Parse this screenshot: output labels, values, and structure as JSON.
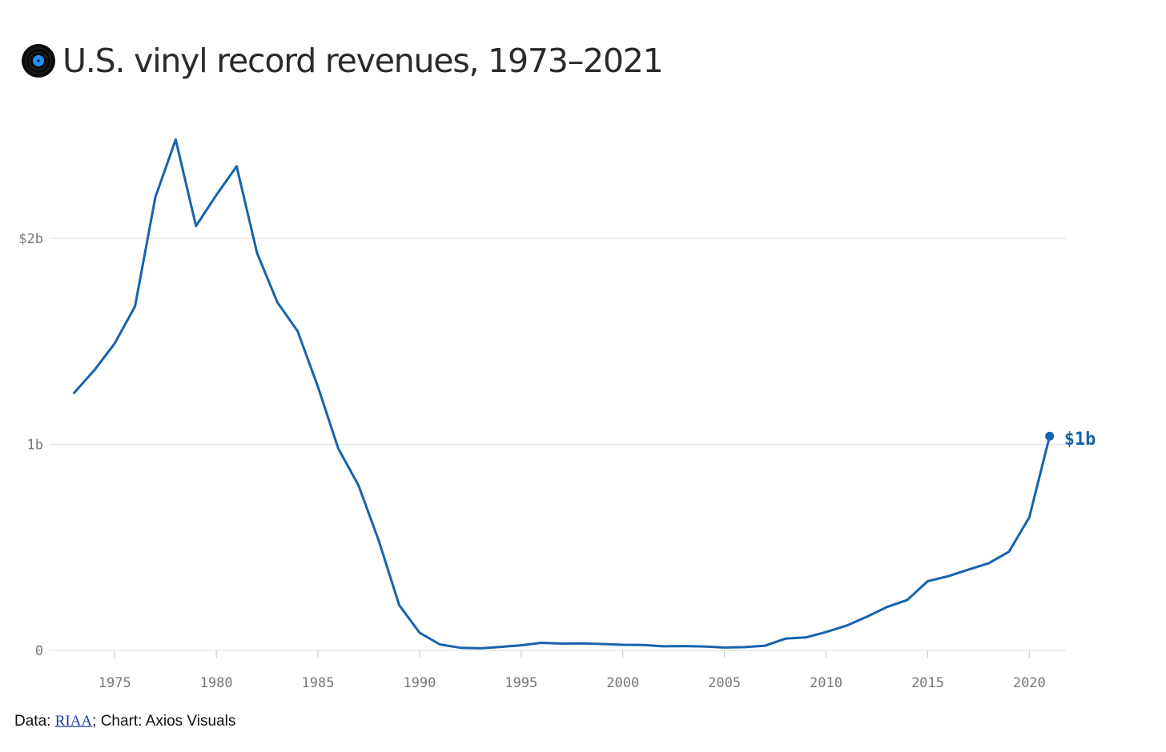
{
  "title": "U.S. vinyl record revenues, 1973–2021",
  "icon": "vinyl-record-icon",
  "colors": {
    "line": "#1763ad",
    "grid": "#e3e3e3",
    "tick": "#777777",
    "icon_center": "#1e90ff"
  },
  "footer": {
    "prefix": "Data: ",
    "source_link": "RIAA",
    "suffix": "; Chart: Axios Visuals"
  },
  "chart_data": {
    "type": "line",
    "title": "U.S. vinyl record revenues, 1973–2021",
    "xlabel": "",
    "ylabel": "",
    "x": [
      1973,
      1974,
      1975,
      1976,
      1977,
      1978,
      1979,
      1980,
      1981,
      1982,
      1983,
      1984,
      1985,
      1986,
      1987,
      1988,
      1989,
      1990,
      1991,
      1992,
      1993,
      1994,
      1995,
      1996,
      1997,
      1998,
      1999,
      2000,
      2001,
      2002,
      2003,
      2004,
      2005,
      2006,
      2007,
      2008,
      2009,
      2010,
      2011,
      2012,
      2013,
      2014,
      2015,
      2016,
      2017,
      2018,
      2019,
      2020,
      2021
    ],
    "values": [
      1.25,
      1.36,
      1.49,
      1.67,
      2.2,
      2.48,
      2.06,
      2.21,
      2.35,
      1.93,
      1.69,
      1.55,
      1.28,
      0.98,
      0.8,
      0.53,
      0.22,
      0.086,
      0.029,
      0.013,
      0.01,
      0.017,
      0.025,
      0.037,
      0.033,
      0.034,
      0.031,
      0.027,
      0.026,
      0.02,
      0.021,
      0.019,
      0.014,
      0.016,
      0.023,
      0.057,
      0.063,
      0.089,
      0.12,
      0.163,
      0.211,
      0.245,
      0.336,
      0.36,
      0.392,
      0.423,
      0.479,
      0.646,
      1.04
    ],
    "xlim": [
      1971.8,
      2021.8
    ],
    "ylim": [
      0,
      2.8
    ],
    "x_ticks": [
      1975,
      1980,
      1985,
      1990,
      1995,
      2000,
      2005,
      2010,
      2015,
      2020
    ],
    "x_tick_labels": [
      "1975",
      "1980",
      "1985",
      "1990",
      "1995",
      "2000",
      "2005",
      "2010",
      "2015",
      "2020"
    ],
    "y_ticks": [
      0,
      1,
      2
    ],
    "y_tick_labels": [
      "0",
      "1b",
      "$2b"
    ],
    "grid": true,
    "end_label": "$1b"
  }
}
